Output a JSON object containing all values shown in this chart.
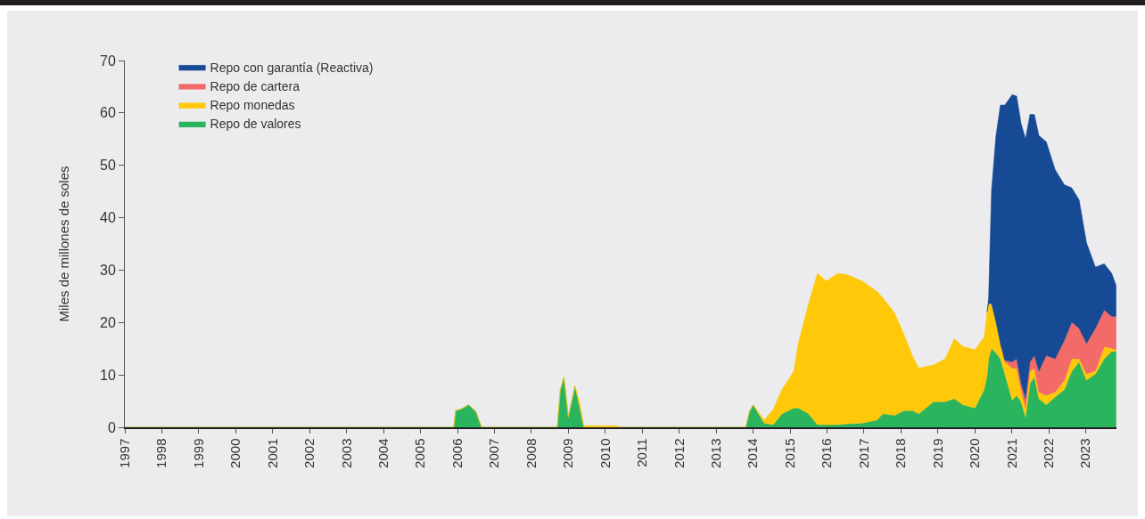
{
  "chart_data": {
    "type": "area",
    "stacked": true,
    "ylabel": "Miles de millones de soles",
    "x": [
      1997,
      2005.9,
      2005.95,
      2006.1,
      2006.3,
      2006.5,
      2006.65,
      2008.7,
      2008.78,
      2008.88,
      2009.0,
      2009.18,
      2009.3,
      2009.42,
      2010.3,
      2010.4,
      2013.8,
      2013.9,
      2014.0,
      2014.3,
      2014.54,
      2014.78,
      2015.1,
      2015.22,
      2015.5,
      2015.74,
      2015.98,
      2016.3,
      2016.55,
      2016.95,
      2017.35,
      2017.51,
      2017.83,
      2018.08,
      2018.32,
      2018.48,
      2018.88,
      2019.2,
      2019.44,
      2019.68,
      2020.0,
      2020.25,
      2020.33,
      2020.37,
      2020.45,
      2020.57,
      2020.69,
      2020.81,
      2021.01,
      2021.13,
      2021.25,
      2021.37,
      2021.49,
      2021.61,
      2021.73,
      2021.93,
      2022.17,
      2022.42,
      2022.62,
      2022.82,
      2023.02,
      2023.26,
      2023.5,
      2023.7,
      2023.82
    ],
    "series": [
      {
        "name": "Repo de valores",
        "color": "#2bb45e",
        "values": [
          0,
          0,
          3.2,
          3.5,
          4.3,
          3.0,
          0,
          0,
          7.0,
          9.6,
          2.0,
          7.9,
          4.0,
          0,
          0,
          0,
          0,
          3.0,
          4.3,
          0.8,
          0.5,
          2.6,
          3.7,
          3.7,
          2.6,
          0.5,
          0.5,
          0.5,
          0.7,
          0.8,
          1.4,
          2.6,
          2.3,
          3.2,
          3.2,
          2.6,
          4.9,
          4.9,
          5.5,
          4.3,
          3.7,
          7.2,
          10.0,
          13.1,
          15.1,
          14.2,
          13.1,
          10.2,
          5.2,
          6.1,
          4.9,
          2.0,
          8.4,
          9.6,
          5.5,
          4.3,
          5.8,
          7.2,
          10.7,
          12.5,
          9.0,
          10.2,
          13.1,
          14.5,
          14.5
        ]
      },
      {
        "name": "Repo monedas",
        "color": "#ffc90a",
        "values": [
          0,
          0,
          0,
          0,
          0,
          0,
          0,
          0,
          0,
          0,
          0,
          0,
          1.0,
          0.3,
          0.3,
          0,
          0,
          0,
          0,
          0.6,
          2.9,
          4.6,
          7.0,
          12.3,
          21.0,
          28.9,
          27.4,
          28.9,
          28.4,
          27.1,
          24.5,
          22.1,
          19.5,
          14.5,
          10.3,
          8.7,
          7.0,
          8.2,
          11.4,
          11.1,
          11.1,
          10.0,
          12.0,
          10.5,
          8.5,
          5.9,
          2.9,
          2.3,
          6.1,
          5.2,
          2.3,
          1.7,
          2.3,
          1.7,
          1.2,
          1.8,
          0.9,
          1.8,
          2.4,
          0.6,
          1.2,
          0.6,
          2.3,
          0.6,
          0.3
        ]
      },
      {
        "name": "Repo de cartera",
        "color": "#f26b68",
        "values": [
          null,
          null,
          null,
          null,
          null,
          null,
          null,
          null,
          null,
          null,
          null,
          null,
          null,
          null,
          null,
          null,
          null,
          null,
          null,
          null,
          null,
          null,
          null,
          null,
          null,
          null,
          null,
          null,
          null,
          null,
          null,
          null,
          null,
          null,
          null,
          null,
          null,
          null,
          null,
          null,
          null,
          null,
          null,
          null,
          null,
          null,
          0,
          0.3,
          1.2,
          1.8,
          1.2,
          1.8,
          1.8,
          2.4,
          4.0,
          7.6,
          6.4,
          7.6,
          7.0,
          5.8,
          5.8,
          8.1,
          7.0,
          6.1,
          6.4
        ]
      },
      {
        "name": "Repo con garantía (Reactiva)",
        "color": "#174a94",
        "values": [
          null,
          null,
          null,
          null,
          null,
          null,
          null,
          null,
          null,
          null,
          null,
          null,
          null,
          null,
          null,
          null,
          null,
          null,
          null,
          null,
          null,
          null,
          null,
          null,
          null,
          null,
          null,
          null,
          null,
          null,
          null,
          null,
          null,
          null,
          null,
          null,
          null,
          null,
          null,
          null,
          null,
          null,
          0,
          1.1,
          21.6,
          35.6,
          45.5,
          48.7,
          51.0,
          50.1,
          49.6,
          49.6,
          47.2,
          46.0,
          45.0,
          40.8,
          36.1,
          29.7,
          25.6,
          24.5,
          19.2,
          11.7,
          8.8,
          8.2,
          5.9
        ]
      }
    ],
    "xlim": [
      1997,
      2023.83
    ],
    "xticks": [
      1997,
      1998,
      1999,
      2000,
      2001,
      2002,
      2003,
      2004,
      2005,
      2006,
      2007,
      2008,
      2009,
      2010,
      2011,
      2012,
      2013,
      2014,
      2015,
      2016,
      2017,
      2018,
      2019,
      2020,
      2021,
      2022,
      2023
    ],
    "ylim": [
      0,
      70
    ],
    "yticks": [
      0,
      10,
      20,
      30,
      40,
      50,
      60,
      70
    ],
    "grid": false,
    "legend": "top left",
    "marker": "none",
    "line_style": "solid"
  }
}
